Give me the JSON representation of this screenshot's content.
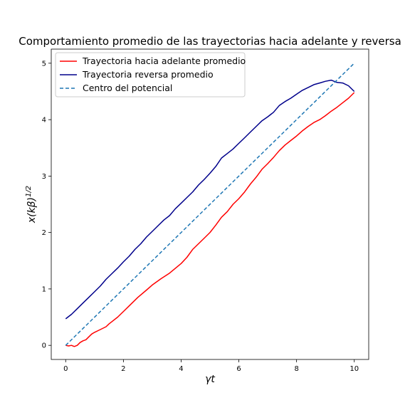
{
  "chart_data": {
    "type": "line",
    "title": "Comportamiento promedio de las trayectorias hacia adelante y reversa",
    "xlabel": "γt",
    "ylabel": "x(kβ)",
    "ylabel_sup": "1/2",
    "xlim": [
      -0.5,
      10.5
    ],
    "ylim": [
      -0.25,
      5.25
    ],
    "xticks": [
      0,
      2,
      4,
      6,
      8,
      10
    ],
    "yticks": [
      0,
      1,
      2,
      3,
      4,
      5
    ],
    "grid": false,
    "legend_position": "top-left",
    "series": [
      {
        "name": "Trayectoria hacia adelante promedio",
        "color": "#ff0000",
        "style": "solid",
        "x": [
          0,
          0.1,
          0.2,
          0.3,
          0.4,
          0.5,
          0.6,
          0.7,
          0.8,
          0.9,
          1.0,
          1.2,
          1.4,
          1.5,
          1.6,
          1.8,
          2.0,
          2.2,
          2.5,
          2.8,
          3.0,
          3.3,
          3.6,
          4.0,
          4.2,
          4.4,
          4.6,
          4.8,
          5.0,
          5.2,
          5.4,
          5.6,
          5.8,
          6.0,
          6.2,
          6.4,
          6.6,
          6.8,
          7.0,
          7.2,
          7.4,
          7.6,
          7.8,
          8.0,
          8.2,
          8.4,
          8.6,
          8.8,
          9.0,
          9.2,
          9.4,
          9.6,
          9.8,
          10.0
        ],
        "y": [
          0.0,
          -0.01,
          0.0,
          -0.02,
          0.0,
          0.05,
          0.08,
          0.1,
          0.15,
          0.2,
          0.23,
          0.28,
          0.33,
          0.38,
          0.42,
          0.5,
          0.6,
          0.7,
          0.85,
          0.98,
          1.07,
          1.18,
          1.28,
          1.45,
          1.56,
          1.7,
          1.8,
          1.9,
          2.0,
          2.13,
          2.27,
          2.37,
          2.5,
          2.6,
          2.72,
          2.86,
          2.98,
          3.12,
          3.22,
          3.33,
          3.45,
          3.55,
          3.63,
          3.71,
          3.8,
          3.88,
          3.95,
          4.0,
          4.07,
          4.15,
          4.22,
          4.3,
          4.38,
          4.48
        ]
      },
      {
        "name": "Trayectoria reversa promedio",
        "color": "#00008b",
        "style": "solid",
        "x": [
          0,
          0.2,
          0.4,
          0.6,
          0.8,
          1.0,
          1.2,
          1.4,
          1.6,
          1.8,
          2.0,
          2.2,
          2.4,
          2.6,
          2.8,
          3.0,
          3.2,
          3.4,
          3.6,
          3.8,
          4.0,
          4.2,
          4.4,
          4.6,
          4.8,
          5.0,
          5.2,
          5.4,
          5.6,
          5.8,
          6.0,
          6.2,
          6.4,
          6.6,
          6.8,
          7.0,
          7.2,
          7.4,
          7.6,
          7.8,
          8.0,
          8.2,
          8.4,
          8.6,
          8.8,
          9.0,
          9.2,
          9.4,
          9.6,
          9.8,
          10.0
        ],
        "y": [
          0.47,
          0.55,
          0.65,
          0.75,
          0.85,
          0.95,
          1.05,
          1.17,
          1.27,
          1.37,
          1.48,
          1.58,
          1.7,
          1.8,
          1.92,
          2.02,
          2.12,
          2.22,
          2.3,
          2.42,
          2.52,
          2.62,
          2.72,
          2.84,
          2.94,
          3.05,
          3.17,
          3.32,
          3.4,
          3.48,
          3.58,
          3.68,
          3.78,
          3.88,
          3.98,
          4.05,
          4.13,
          4.25,
          4.32,
          4.38,
          4.45,
          4.52,
          4.57,
          4.62,
          4.65,
          4.68,
          4.7,
          4.66,
          4.65,
          4.6,
          4.5
        ]
      },
      {
        "name": "Centro del potencial",
        "color": "#1f77b4",
        "style": "dashed",
        "x": [
          0,
          10
        ],
        "y": [
          0,
          5
        ]
      }
    ]
  }
}
